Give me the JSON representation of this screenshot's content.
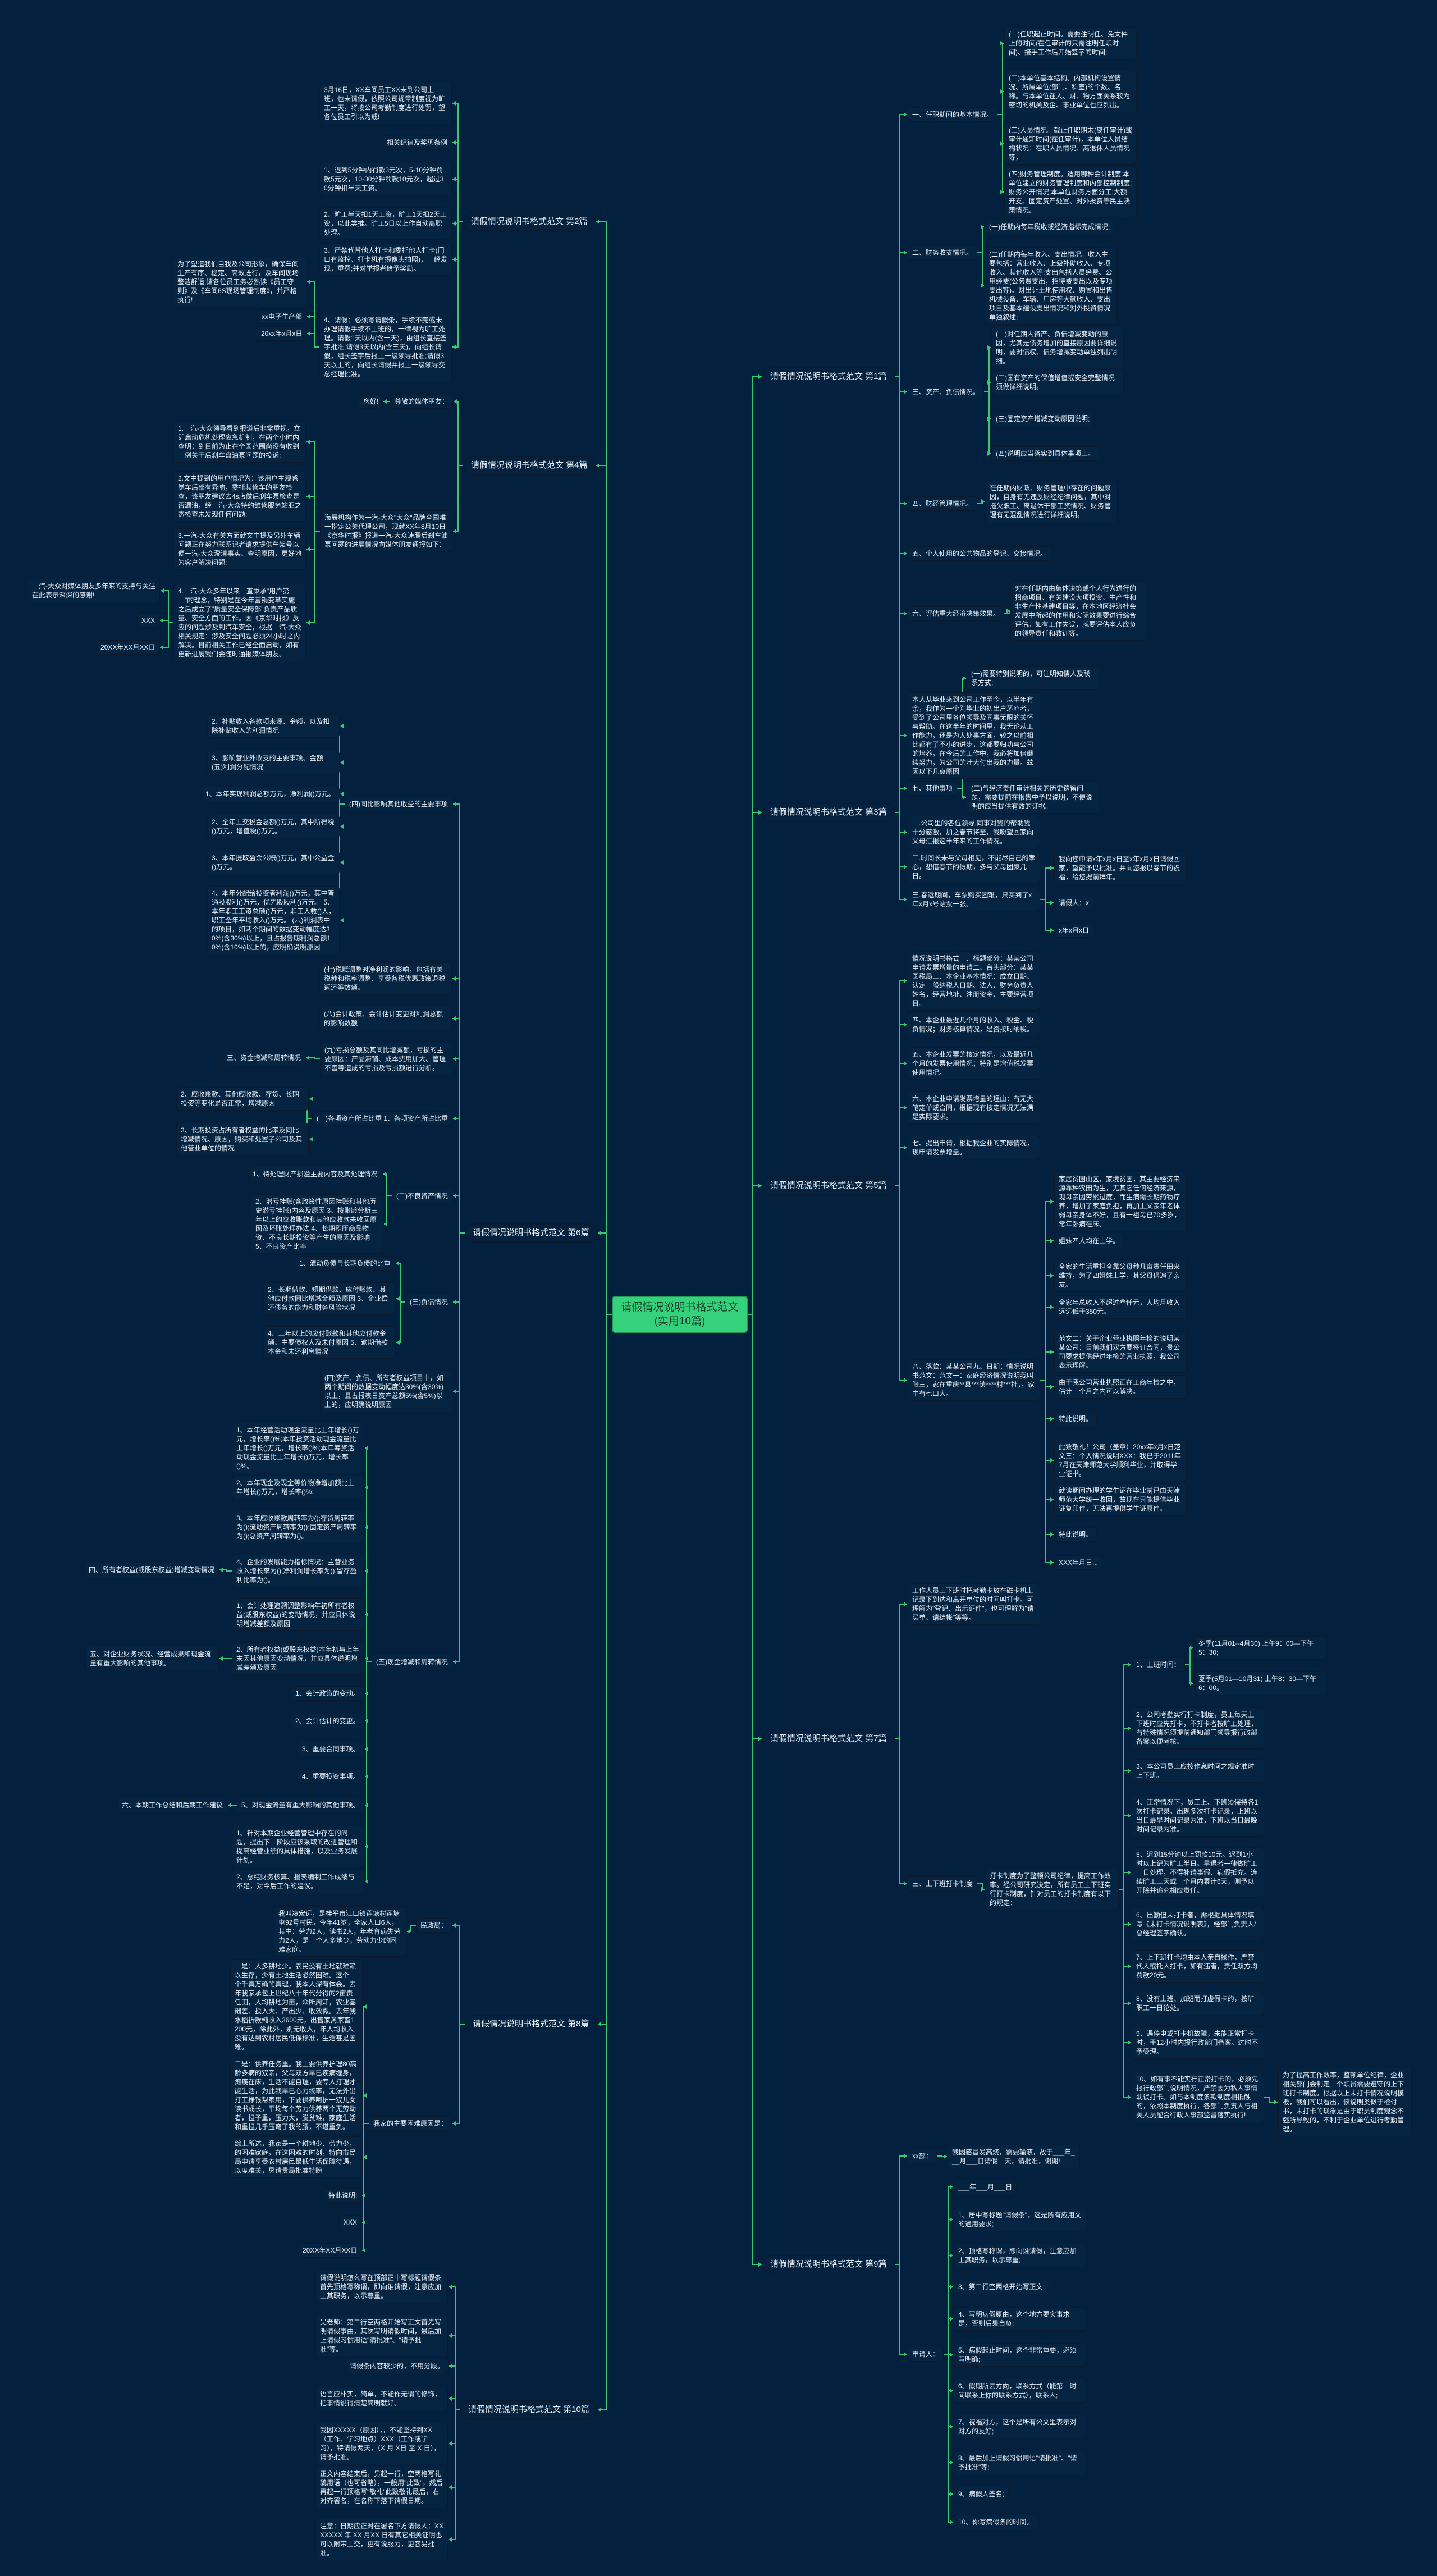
{
  "colors": {
    "background": "#03203e",
    "connector": "#37c871",
    "central_fill": "#35d27b",
    "node_fill": "#052441"
  },
  "central": "请假情况说明书格式范文(实用10篇)",
  "articles": [
    {
      "title": "请假情况说明书格式范文 第1篇",
      "nodes": [
        "一、任职期间的基本情况。",
        "(一)任职起止时间。需要注明任、免文件上的时间(在任审计的只需注明任职时间)、接手工作后开始签字的时间;",
        "(二)本单位基本结构。内部机构设置情况、所属单位(部门、科室)的个数、名称。与本单位在人、财、物方面关系较为密切的机关及企、事业单位也应列出。",
        "(三)人员情况。截止任职期末(离任审计)或审计通知时间(在任审计)，本单位人员结构状况：在职人员情况、离退休人员情况等，",
        "(四)财务管理制度。适用哪种会计制度;本单位建立的财务管理制度和内部控制制度;财务公开情况;本单位财务方面分工;大额开支、固定资产处置、对外投资等民主决策情况。",
        "二、财务收支情况。",
        "(一)任期内每年税收或经济指标完成情况;",
        "(二)任期内每年收入、支出情况。收入主要包括：营业收入、上级补助收入、专项收入、其他收入等;支出包括人员经费、公用经费(公务费支出，招待费支出以及专项支出等)。对出让土地使用权、购置和出售机械设备、车辆、厂房等大额收入、支出项目及基本建设支出情况和对外投资情况单独叙述;",
        "三、资产、负债情况。",
        "(一)对任期内资产、负债增减变动的原因，尤其是债务增加的直接原因要详细说明，要对债权、债务增减变动单独列出明细。",
        "(二)国有资产的保值增值或安全完整情况须做详细说明。",
        "(三)固定资产增减变动原因说明;",
        "(四)说明应当落实到具体事项上。",
        "四、财经管理情况。",
        "在任期内财政、财务管理中存在的问题原因，自身有无违反财经纪律问题，其中对拖欠职工、离退休干部工资情况、财务管理有无混乱情况进行详细说明。",
        "五、个人使用的公共物品的登记、交接情况。",
        "六、评估重大经济决策效果。",
        "对在任期内由集体决策或个人行为进行的招商项目、有关建设大项投资、生产性和非生产性基建项目等，在本地区经济社会发展中所起的作用和实际效果要进行综合评估。如有工作失误，就要评估本人应负的领导责任和教训等。",
        "七、其他事项",
        "(一)需要特别说明的，可注明知情人及联系方式;",
        "(二)与经济责任审计相关的历史遗留问题，需要提前在报告中予以说明，不便说明的应当提供有效的证据。"
      ]
    },
    {
      "title": "请假情况说明书格式范文 第2篇",
      "nodes": [
        "3月16日，XX车间员工XX未到公司上班，也未请假，依照公司规章制度视为旷工一天，将按公司考勤制度进行处罚，望各位员工引以为戒!",
        "相关纪律及奖惩条例",
        "1、迟到5分钟内罚款3元次，5-10分钟罚款5元次，10-30分钟罚款10元次，超过30分钟扣半天工资。",
        "2、旷工半天扣1天工资，旷工1天扣2天工资，以此类推。旷工5日以上作自动离职处理。",
        "3、严禁代替他人打卡和委托他人打卡(门口有监控、打卡机有摄像头拍照)，一经发现，重罚;并对举报者给予奖励。",
        "4、请假：必须写请假条，手续不完或未办理请假手续不上班的，一律视为旷工处理。请假1天以内(含一天)，由组长直接签字批准;请假3天以内(含三天)，向组长请假，组长签字后报上一级领导批准;请假3天以上的，向组长请假并报上一级领导交总经理批准。",
        "为了塑造我们自我及公司形象，确保车间生产有序、稳定、高效进行，及车间现场整洁舒适;请各位员工务必熟读《员工守则》及《车间6S现场管理制度》，并严格执行!",
        "xx电子生产部",
        "20xx年x月x日"
      ]
    },
    {
      "title": "请假情况说明书格式范文 第3篇",
      "nodes": [
        "本人从毕业来到公司工作至今，以半年有余，我作为一个刚毕业的初出户茅庐者，受到了公司里各位领导及同事无限的关怀与帮助。在这半年的时间里，我无论从工作能力，还是为人处事方面，较之以前相比都有了不小的进步，这都要归功与公司的培养，在今后的工作中，我必将加倍继续努力，为公司的壮大付出我的力量。兹因以下几点原因",
        "一.公司里的各位领导,同事对我的帮助我十分感激，加之春节将至，我盼望回家向父母汇报这半年来的工作情况。",
        "二.时间长未与父母相见，不能尽自己的孝心，想借春节的假期，多与父母团聚几日。",
        "三.春运期间，车票购买困难，只买到了x年x月x号站票一张。",
        "我向您申请x年x月x日至x年x月x日请假回家，望能予以批准。并向您报以春节的祝福，给您提前拜年。",
        "请假人：x",
        "x年x月x日"
      ]
    },
    {
      "title": "请假情况说明书格式范文 第4篇",
      "nodes": [
        "尊敬的媒体朋友：",
        "您好!",
        "海辰机构作为一汽-大众\"大众\"品牌全国唯一指定公关代理公司，现就XX年8月10日《京华时报》报道一汽-大众速腾后刹车油泵问题的进展情况向媒体朋友通报如下：",
        "1.一汽-大众领导看到报道后非常重视，立即启动危机处理应急机制，在两个小时内查明：到目前为止在全国范围尚没有收到一例关于后刹车盘油泵问题的投诉;",
        "2.文中提到的用户情况为：该用户主观感觉车后部有异响，委托其修车的朋友检查，该朋友建议去4s店做后刹车泵检查是否漏油，经一汽-大众特约维修服务站亚之杰检查未发现任何问题;",
        "3.一汽-大众有关方面就文中提及另外车辆问题正在努力联系记者请求提供车架号以便一汽-大众澄清事实、查明原因，更好地为客户解决问题;",
        "4.一汽-大众多年以来一直秉承\"用户第一\"的理念，特别是在今年营销变革实施之后成立了\"质量安全保障部\"负责产品质量、安全方面的工作。因《京华时报》反应的问题涉及到汽车安全，根据一汽-大众相关规定：涉及安全问题必须24小时之内解决。目前相关工作已经全面启动，如有更新进展我们会随时通报媒体朋友。",
        "一汽-大众对媒体朋友多年来的支持与关注在此表示深深的感谢!",
        "XXX",
        "20XX年XX月XX日"
      ]
    },
    {
      "title": "请假情况说明书格式范文 第5篇",
      "nodes": [
        "情况说明书格式一、标题部分：某某公司申请发票增量的申请二、台头部分：某某国税局三、本企业基本情况：成立日期、认定一般纳税人日期、法人、财务负责人姓名，经营地址、注册资金、主要经营项目。",
        "四、本企业最近几个月的收入、税金、税负情况；财务核算情况，是否按时纳税。",
        "五、本企业发票的核定情况，以及最近几个月的发票使用情况；特别是增值税发票使用情况。",
        "六、本企业申请发票增量的理由：有无大笔定单或合同，根据现有核定情况无法满足实际要求。",
        "七、提出申请，根据我企业的实际情况，现申请发票增量。",
        "八、落款：某某公司九、日期：情况说明书范文：范文一：家庭经济情况说明我叫张三，家在重庆**县***镇****村***社，，家中有七口人。",
        "家居贫困山区，家境贫困，其主要经济来源靠种农田为生，无其它任何经济来源，现母亲因劳累过度，而生病需长期药物疗养，增加了家庭负担，再加上父亲年老体弱母亲身体不好，且有一祖母已70多岁，常年卧病在床。",
        "姐妹四人均在上学。",
        "全家的生活重担全靠父母种几亩责任田来维持，为了四姐妹上学，其父母借遍了亲友。",
        "全家年总收入不超过叁仟元，人均月收入远远低于350元。",
        "范文二：关于企业营业执照年检的说明某某公司：目前我们双方要签订合同，贵公司要求提供经过年检的营业执照，我公司表示理解。",
        "由于我公司营业执照正在工商年检之中，估计一个月之内可以解决。",
        "特此说明。",
        "此致敬礼！公司（盖章）20xx年x月x日范文三：个人情况说明XXX：我已于2011年7月在天津师范大学顺利毕业，并取得毕业证书。",
        "就读期间办理的学生证在毕业前已由天津师范大学统一收回，故现在只能提供毕业证复印件，无法再提供学生证原件。",
        "特此说明。",
        "XXX年月日..."
      ]
    },
    {
      "title": "请假情况说明书格式范文 第6篇",
      "nodes": [
        "(四)同比影响其他收益的主要事项",
        "2、补贴收入各款项来源、金额，以及扣除补贴收入的利润情况",
        "3、影响营业外收支的主要事项、金额 (五)利润分配情况",
        "1、本年实现利润总额万元，净利润()万元。",
        "2、全年上交税金总额()万元，其中所得税()万元，增值税()万元。",
        "3、本年提取盈余公积()万元，其中公益金()万元。",
        "4、本年分配给投资者利润()万元，其中普通股股利()万元，优先股股利()万元。 5、本年职工工资总额()万元，职工人数()人，职工全年平均收入()万元。 (六)利润表中的项目，如两个期间的数据变动幅度达30%(含30%)以上，且占报告期利润总额10%(含10%)以上的，应明确说明原因",
        "(七)税赋调整对净利润的影响，包括有关税种和税率调整、享受各税优惠政策退税返还等数额。",
        "(八)会计政策、会计估计变更对利润总额的影响数额",
        "(九)亏损总额及其同比增减额，亏损的主要原因：产品滞销、成本费用加大、管理不善等造成的亏损及亏损额进行分析。",
        "三、资金增减和周转情况",
        "(一)各项资产所占比重 1、各项资产所占比重",
        "2、应收账款、其他应收款、存货、长期投资等变化是否正常，增减原因",
        "3、长期投资占所有者权益的比率及同比增减情况、原因，购买和处置子公司及其他营业单位的情况",
        "(二)不良资产情况",
        "1、待处理财产损溢主要内容及其处理情况",
        "2、潜亏挂账(含政策性原因挂账和其他历史潜亏挂账)内容及原因 3、按账龄分析三年以上的应收账款和其他应收款未收回原因及坏账处理办法 4、长期积压商品物资、不良长期投资等产生的原因及影响 5、不良资产比率",
        "(三)负债情况",
        "1、流动负债与长期负债的比重",
        "2、长期借款、短期借款、应付账款、其他应付款同比增减金额及原因 3、企业偿还债务的能力和财务风险状况",
        "4、三年以上的应付账款和其他应付款金额、主要债权人及未付原因 5、逾期借款本金和未还利息情况",
        "(四)资产、负债、所有者权益项目中，如两个期间的数据变动幅度达30%(含30%)以上，且占报表日资产总额5%(含5%)以上的，应明确说明原因",
        "(五)现金增减和周转情况",
        "1、本年经营活动现金流量比上年增长()万元，增长率()%;本年投资活动现金流量比上年增长()万元，增长率()%;本年筹资活动现金流量比上年增长()万元，增长率()%。",
        "2、本年现金及现金等价物净增加额比上年增长()万元，增长率()%;",
        "3、本年应收账款周转率为();存货周转率为();流动资产周转率为();固定资产周转率为();总资产周转率为()。",
        "4、企业的发展能力指标情况：主营业务收入增长率为();净利润增长率为();留存盈利比率为()。",
        "四、所有者权益(或股东权益)增减变动情况",
        "1、会计处理追溯调整影响年初所有者权益(或股东权益)的变动情况，并应具体说明增减差额及原因",
        "2、所有者权益(或股东权益)本年初与上年末因其他原因变动情况，并应具体说明增减差额及原因",
        "五、对企业财务状况、经营成果和现金流量有重大影响的其他事项。",
        "1、会计政策的变动。",
        "2、会计估计的变更。",
        "3、重要合同事项。",
        "4、重要投资事项。",
        "5、对现金流量有重大影响的其他事项。",
        "六、本期工作总结和后期工作建议",
        "1、针对本期企业经营管理中存在的问题，提出下一阶段应该采取的改进管理和提高经营业绩的具体措施，以及业务发展计划。",
        "2、总结财务核算、报表编制工作成绩与不足，对今后工作的建议。"
      ]
    },
    {
      "title": "请假情况说明书格式范文 第7篇",
      "nodes": [
        "工作人员上下班时把考勤卡放在磁卡机上记录下到达和离开单位的时间叫打卡。可理解为\"登记、出示证件\"，也可理解为\"请买单、请结帐\"等等。",
        "三、上下班打卡制度",
        "打卡制度为了整顿公司纪律，提高工作效率。经公司研究决定，所有员工上下班实行打卡制度，针对员工的打卡制度有以下的规定：",
        "1、上班时间：",
        "冬季(11月01--4月30) 上午9：00—下午5：30;",
        "夏季(5月01—10月31) 上午8：30—下午6：00。",
        "2、公司考勤实行打卡制度，员工每天上下班时应先打卡，不打卡者按旷工处理，有特殊情况须提前通知部门领导报行政部备案以便考核。",
        "3、本公司员工应按作息时间之规定准时上下班。",
        "4、正常情况下，员工上、下班须保持各1次打卡记录。出现多次打卡记录，上班以当日最早时间记录为准，下班以当日最晚时间记录为准。",
        "5、迟到15分钟以上罚款10元。迟到1小时以上记为旷工半日。早退者一律做旷工一日处理，不得补请事假、病假抵充。连续旷工三天或一个月内累计6天，则予以开除并追究相应责任。",
        "6、出勤但未打卡者，需根据具体情况填写《未打卡情况说明表》，经部门负责人/总经理签字确认。",
        "7、上下班打卡均由本人亲自操作，严禁代人或托人打卡，如有违者，责任双方均罚款20元。",
        "8、没有上班、加班而打虚假卡的，按旷职工一日论处。",
        "9、遇停电或打卡机故障，未能正常打卡时，于12小时内报行政部门备案。过时不予受理。",
        "10、如有事不能实行正常打卡的，必须先报行政部门说明情况，严禁因为私人事情耽误打卡。如与本制度条款制度相抵触的，依照本制度执行，各部门负责人与相关人员配合行政人事部监督落实执行!",
        "为了提高工作效率，整顿单位纪律，企业相关部门会制定一个职员需要遵守的上下班打卡制度。根据以上未打卡情况说明模板，我们可以看出，该说明类似于检讨书，未打卡的现象是由于职员制度观念不强所导致的，不利于企业单位进行考勤管理。"
      ]
    },
    {
      "title": "请假情况说明书格式范文 第8篇",
      "nodes": [
        "民政局：",
        "我叫凌宏远，是桂平市江口镇莲塘村莲塘屯92号村民，今年41岁，全家人口6人，其中：劳力2人，读书2人，年老有病失劳力2人，是一个人多地少，劳动力少的困难家庭。",
        "我家的主要困难原因是：",
        "一是：人多耕地少。农民没有土地就难赖以生存，少有土地生活必然困难。这个一个千真万确的真理，我本人深有体会。去年我家承包上世纪八十年代分得的2亩责任田，人均耕地为亩，众所周知，农业基础差、投入大、产出少、收效微。去年我水稻折款纯收入3600元，出售家禽家畜1200元，除此外，别无收入，年人均收入没有达到农村居民低保标准，生活甚是困难。",
        "二是：供养任务重。我上要供养护理80高龄多病的双亲，父母双方早已疾病缠身，瘫痪在床，生活不能自理，要专人打理才能生活，为此我早已心力绞率，无法外出打工挣钱帮家用，下要供养呵护一双儿女读书成长，平均每个劳力供养两个无劳动者，担子重，压力大，脱贫难，家庭生活和重担几乎压弯了我的腰，不堪重负。",
        "综上所述，我家是一个耕地少、劳力少，的困难家庭，在这困难的时刻，特向市民局申请享受农村居民最低生活保障待遇，以度难关，恳请贵局批准特盼",
        "特此说明!",
        "XXX",
        "20XX年XX月XX日"
      ]
    },
    {
      "title": "请假情况说明书格式范文 第9篇",
      "nodes": [
        "xx部：",
        "我因感冒发高烧，需要输液，故于___年___月___日请假一天，请批准，谢谢!",
        "申请人：",
        "___年___月___日",
        "1、居中写标题\"请假条\"，这是所有应用文的通用要求;",
        "2、顶格写称谓，即向谁请假，注意应加上其职务，以示尊重;",
        "3、第二行空两格开始写正文;",
        "4、写明病假原由，这个地方要实事求是，否则后果自负;",
        "5、病假起止时间，这个非常重要，必须写明确;",
        "6、假期所去方向，联系方式（能第一时间联系上你的联系方式），联系人;",
        "7、祝福对方，这个是所有公文里表示对对方的友好;",
        "8、最后加上请假习惯用语\"请批准\"、\"请予批准\"等;",
        "9、病假人签名;",
        "10、你写病假条的时间。"
      ]
    },
    {
      "title": "请假情况说明书格式范文 第10篇",
      "nodes": [
        "请假说明怎么写在顶部正中写标题请假条首先顶格写称谓，即向谁请假，注意应加上其职务，以示尊重。",
        "吴老师：第二行空两格开始写正文首先写明请假事由，其次写明请假时间，最后加上请假习惯用语\"请批准\"、\"请予批准\"等。",
        "请假条内容较少的，不用分段。",
        "语言应朴实，简单，不能作无谓的修饰，把事情说得清楚简明就好。",
        "我因XXXXX（原因），，不能坚持到XX（工作、学习地点）XXX（工作或学习），特请假两天，（X 月 X日 至 X 日），请予批准。",
        "正文内容结束后，另起一行，空两格写礼貌用语（也可省略），一般用\"此致\"，然后再起一行顶格写\"敬礼\"此致敬礼最后，右对齐署名，在名称下落下请假日期。",
        "注意：日期应正对在署名下方请假人：XXXXXXX 年 XX 月XX 日有其它相关证明也可以附带上交，更有说服力，更容易批准。"
      ]
    }
  ]
}
